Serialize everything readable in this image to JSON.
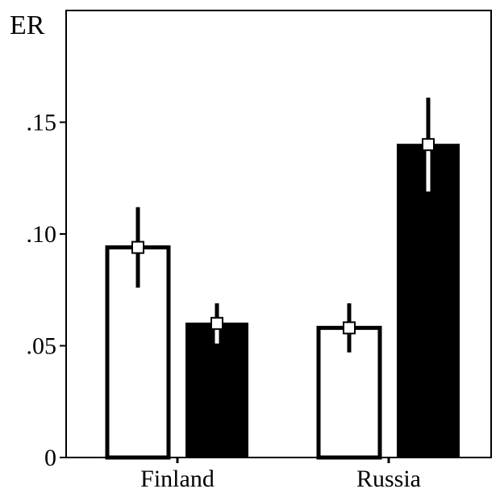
{
  "chart_data": {
    "type": "bar",
    "ylabel": "ER",
    "ylim": [
      0,
      0.2
    ],
    "yticks": [
      {
        "value": 0,
        "label": "0"
      },
      {
        "value": 0.05,
        "label": ".05"
      },
      {
        "value": 0.1,
        "label": ".10"
      },
      {
        "value": 0.15,
        "label": ".15"
      }
    ],
    "categories": [
      "Finland",
      "Russia"
    ],
    "series": [
      {
        "fill": "#ffffff",
        "values": [
          0.094,
          0.058
        ],
        "err_low": [
          0.076,
          0.047
        ],
        "err_high": [
          0.112,
          0.069
        ]
      },
      {
        "fill": "#000000",
        "values": [
          0.06,
          0.14
        ],
        "err_low": [
          0.051,
          0.119
        ],
        "err_high": [
          0.069,
          0.161
        ]
      }
    ],
    "grid": false,
    "legend": "none"
  },
  "colors": {
    "axis": "#000000",
    "marker_fill": "#ffffff"
  }
}
